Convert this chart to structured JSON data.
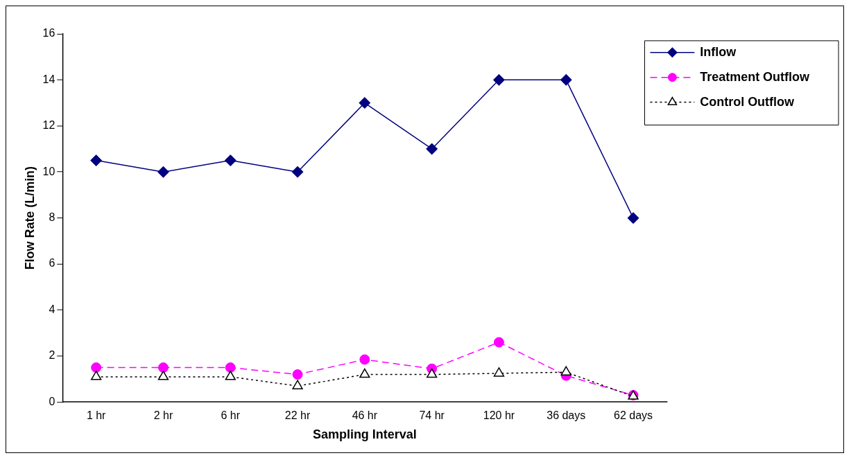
{
  "chart_data": {
    "type": "line",
    "xlabel": "Sampling Interval",
    "ylabel": "Flow Rate (L/min)",
    "categories": [
      "1 hr",
      "2 hr",
      "6 hr",
      "22 hr",
      "46 hr",
      "74 hr",
      "120 hr",
      "36 days",
      "62 days"
    ],
    "series": [
      {
        "name": "Inflow",
        "color": "#000080",
        "marker": "diamond",
        "line_style": "solid",
        "values": [
          10.5,
          10,
          10.5,
          10,
          13,
          11,
          14,
          14,
          8
        ]
      },
      {
        "name": "Treatment Outflow",
        "color": "#ff00ff",
        "marker": "circle",
        "line_style": "dashed",
        "values": [
          1.5,
          1.5,
          1.5,
          1.2,
          1.85,
          1.45,
          2.6,
          1.15,
          0.3
        ]
      },
      {
        "name": "Control Outflow",
        "color": "#000000",
        "marker": "triangle",
        "line_style": "dotted",
        "values": [
          1.1,
          1.1,
          1.1,
          0.7,
          1.2,
          1.2,
          1.25,
          1.3,
          0.25
        ]
      }
    ],
    "ylim": [
      0,
      16
    ],
    "yticks": [
      0,
      2,
      4,
      6,
      8,
      10,
      12,
      14,
      16
    ],
    "grid": false,
    "legend": "top right"
  }
}
